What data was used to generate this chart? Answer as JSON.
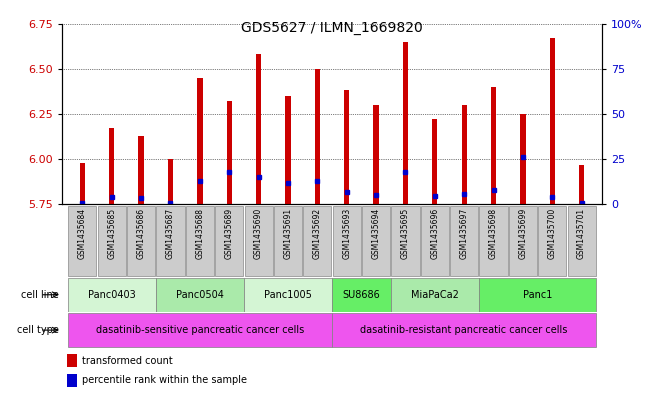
{
  "title": "GDS5627 / ILMN_1669820",
  "samples": [
    "GSM1435684",
    "GSM1435685",
    "GSM1435686",
    "GSM1435687",
    "GSM1435688",
    "GSM1435689",
    "GSM1435690",
    "GSM1435691",
    "GSM1435692",
    "GSM1435693",
    "GSM1435694",
    "GSM1435695",
    "GSM1435696",
    "GSM1435697",
    "GSM1435698",
    "GSM1435699",
    "GSM1435700",
    "GSM1435701"
  ],
  "transformed_counts": [
    5.98,
    6.17,
    6.13,
    6.0,
    6.45,
    6.32,
    6.58,
    6.35,
    6.5,
    6.38,
    6.3,
    6.65,
    6.22,
    6.3,
    6.4,
    6.25,
    6.67,
    5.97
  ],
  "percentile_ranks": [
    0.5,
    4.0,
    3.5,
    0.5,
    13.0,
    18.0,
    15.0,
    12.0,
    13.0,
    7.0,
    5.0,
    18.0,
    4.5,
    5.5,
    8.0,
    26.0,
    4.0,
    1.0
  ],
  "bar_base": 5.75,
  "ylim_left": [
    5.75,
    6.75
  ],
  "yticks_left": [
    5.75,
    6.0,
    6.25,
    6.5,
    6.75
  ],
  "ylim_right": [
    0,
    100
  ],
  "yticks_right": [
    0,
    25,
    50,
    75,
    100
  ],
  "ytick_right_labels": [
    "0",
    "25",
    "50",
    "75",
    "100%"
  ],
  "bar_color": "#cc0000",
  "percentile_color": "#0000cc",
  "bar_width": 0.18,
  "cell_lines": [
    {
      "label": "Panc0403",
      "start": 0,
      "end": 3,
      "color": "#d4f5d4"
    },
    {
      "label": "Panc0504",
      "start": 3,
      "end": 6,
      "color": "#aaeaaa"
    },
    {
      "label": "Panc1005",
      "start": 6,
      "end": 9,
      "color": "#d4f5d4"
    },
    {
      "label": "SU8686",
      "start": 9,
      "end": 11,
      "color": "#66ee66"
    },
    {
      "label": "MiaPaCa2",
      "start": 11,
      "end": 14,
      "color": "#aaeaaa"
    },
    {
      "label": "Panc1",
      "start": 14,
      "end": 18,
      "color": "#66ee66"
    }
  ],
  "cell_types": [
    {
      "label": "dasatinib-sensitive pancreatic cancer cells",
      "start": 0,
      "end": 9,
      "color": "#ee55ee"
    },
    {
      "label": "dasatinib-resistant pancreatic cancer cells",
      "start": 9,
      "end": 18,
      "color": "#ee55ee"
    }
  ],
  "tick_label_color_left": "#cc0000",
  "tick_label_color_right": "#0000cc",
  "sample_box_color": "#cccccc",
  "sample_box_edge": "#888888"
}
